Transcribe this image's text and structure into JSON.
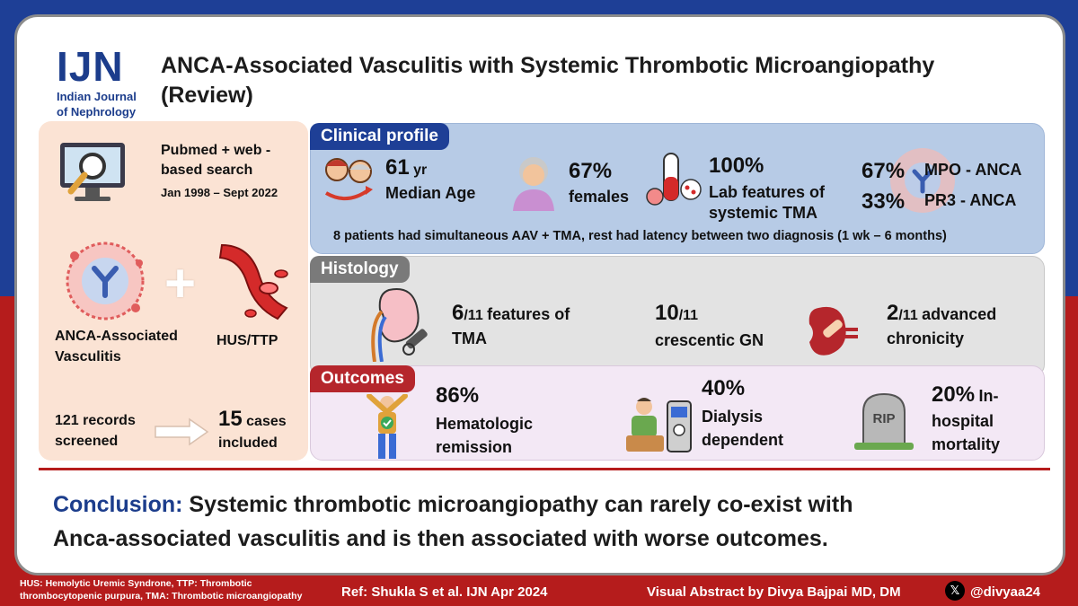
{
  "header": {
    "logo": "IJN",
    "journal_line1": "Indian Journal",
    "journal_line2": "of Nephrology",
    "title_line1": "ANCA-Associated Vasculitis with Systemic Thrombotic Microangiopathy",
    "title_line2": "(Review)"
  },
  "left": {
    "search_line1": "Pubmed + web -",
    "search_line2": "based search",
    "search_dates": "Jan 1998 – Sept 2022",
    "plus": "+",
    "aav_line1": "ANCA-Associated",
    "aav_line2": "Vasculitis",
    "hus": "HUS/TTP",
    "records_line1": "121 records",
    "records_line2": "screened",
    "cases_num": "15",
    "cases_word": "cases",
    "cases_line2": "included"
  },
  "clinical": {
    "tab": "Clinical profile",
    "age_value": "61",
    "age_unit": "yr",
    "age_label": "Median Age",
    "female_value": "67%",
    "female_label": "females",
    "lab_value": "100%",
    "lab_line1": "Lab features of",
    "lab_line2": "systemic TMA",
    "mpo_value": "67%",
    "mpo_label": "MPO - ANCA",
    "pr3_value": "33%",
    "pr3_label": "PR3 - ANCA",
    "note": "8 patients had simultaneous AAV + TMA, rest had latency between two diagnosis (1 wk – 6 months)"
  },
  "histology": {
    "tab": "Histology",
    "tma_num": "6",
    "tma_den": "/11",
    "tma_line1": "features of",
    "tma_line2": "TMA",
    "gn_num": "10",
    "gn_den": "/11",
    "gn_label": "crescentic GN",
    "chron_num": "2",
    "chron_den": "/11",
    "chron_line1": "advanced",
    "chron_line2": "chronicity"
  },
  "outcomes": {
    "tab": "Outcomes",
    "heme_value": "86%",
    "heme_line1": "Hematologic",
    "heme_line2": "remission",
    "dial_value": "40%",
    "dial_line1": "Dialysis",
    "dial_line2": "dependent",
    "mort_value": "20%",
    "mort_line1": "In-",
    "mort_line2": "hospital",
    "mort_line3": "mortality",
    "rip": "RIP"
  },
  "conclusion": {
    "label": "Conclusion:",
    "line1": "Systemic thrombotic microangiopathy can rarely co-exist with",
    "line2": "Anca-associated vasculitis and is then associated with worse outcomes."
  },
  "footer": {
    "abbrev_line1": "HUS: Hemolytic Uremic Syndrone, TTP: Thrombotic",
    "abbrev_line2": "thrombocytopenic purpura, TMA: Thrombotic microangiopathy",
    "ref": "Ref: Shukla S et al.  IJN Apr 2024",
    "credit": "Visual Abstract by Divya Bajpai MD, DM",
    "x_logo": "𝕏",
    "handle": "@divyaa24"
  },
  "colors": {
    "navy": "#1e3f96",
    "red": "#b51c1c",
    "clinical_bg": "#b7cbe6",
    "histology_bg": "#e3e3e3",
    "outcomes_bg": "#f3e8f5",
    "left_bg": "#fbe3d4"
  }
}
